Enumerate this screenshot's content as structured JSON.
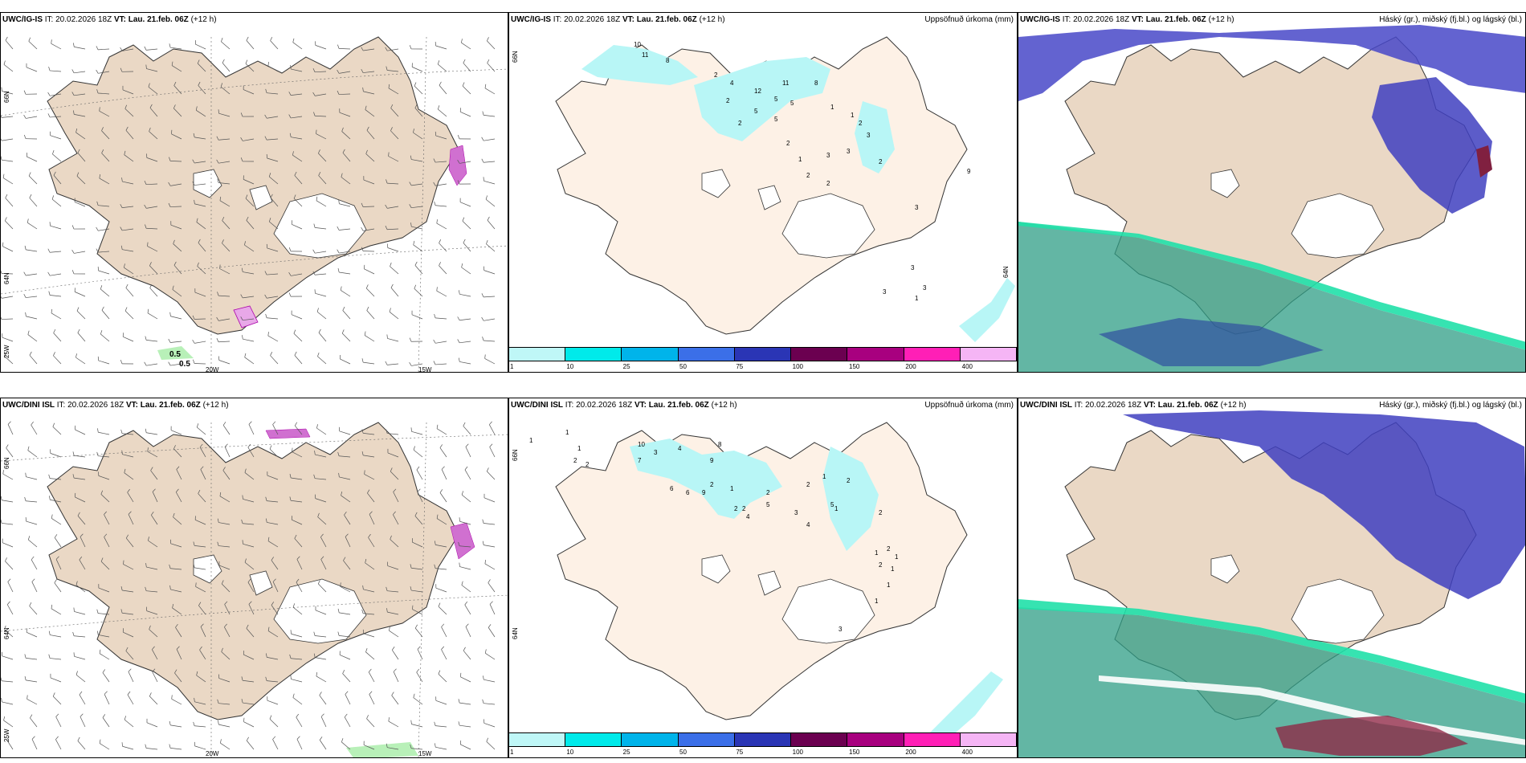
{
  "panels": {
    "r0c0": {
      "model": "UWC/IG-IS",
      "it_label": "IT:",
      "it": "20.02.2026 18Z",
      "vt_label": "VT:",
      "vt": "Lau. 21.feb. 06Z",
      "lead": "(+12 h)",
      "right": ""
    },
    "r0c1": {
      "model": "UWC/IG-IS",
      "it_label": "IT:",
      "it": "20.02.2026 18Z",
      "vt_label": "VT:",
      "vt": "Lau. 21.feb. 06Z",
      "lead": "(+12 h)",
      "right": "Uppsöfnuð úrkoma (mm)"
    },
    "r0c2": {
      "model": "UWC/IG-IS",
      "it_label": "IT:",
      "it": "20.02.2026 18Z",
      "vt_label": "VT:",
      "vt": "Lau. 21.feb. 06Z",
      "lead": "(+12 h)",
      "right": "Háský (gr.), miðský (fj.bl.) og lágský (bl.)"
    },
    "r1c0": {
      "model": "UWC/DINI ISL",
      "it_label": "IT:",
      "it": "20.02.2026 18Z",
      "vt_label": "VT:",
      "vt": "Lau. 21.feb. 06Z",
      "lead": "(+12 h)",
      "right": ""
    },
    "r1c1": {
      "model": "UWC/DINI ISL",
      "it_label": "IT:",
      "it": "20.02.2026 18Z",
      "vt_label": "VT:",
      "vt": "Lau. 21.feb. 06Z",
      "lead": "(+12 h)",
      "right": "Uppsöfnuð úrkoma (mm)"
    },
    "r1c2": {
      "model": "UWC/DINI ISL",
      "it_label": "IT:",
      "it": "20.02.2026 18Z",
      "vt_label": "VT:",
      "vt": "Lau. 21.feb. 06Z",
      "lead": "(+12 h)",
      "right": "Háský (gr.), miðský (fj.bl.) og lágský (bl.)"
    }
  },
  "grid_labels": {
    "lat66": "66N",
    "lat64": "64N",
    "lon25": "25W",
    "lon20": "20W",
    "lon15": "15W"
  },
  "wind_labels": [
    "0.5",
    "0.5"
  ],
  "colorbar": {
    "labels": [
      "1",
      "10",
      "25",
      "50",
      "75",
      "100",
      "150",
      "200",
      "400"
    ],
    "colors": [
      "#bff7f7",
      "#00eaea",
      "#00b4ea",
      "#3b6fe8",
      "#2a35b5",
      "#6b0050",
      "#a8007f",
      "#ff1fb6",
      "#f5b5f5"
    ]
  },
  "precip_values_top": [
    "10",
    "11",
    "8",
    "2",
    "4",
    "2",
    "12",
    "11",
    "5",
    "5",
    "5",
    "5",
    "8",
    "2",
    "1",
    "1",
    "2",
    "3",
    "3",
    "1",
    "2",
    "3",
    "9",
    "2",
    "2",
    "2",
    "3",
    "3",
    "3",
    "3",
    "1"
  ],
  "precip_values_bottom": [
    "1",
    "1",
    "1",
    "2",
    "10",
    "7",
    "3",
    "4",
    "2",
    "8",
    "9",
    "6",
    "6",
    "9",
    "2",
    "1",
    "2",
    "2",
    "4",
    "2",
    "5",
    "2",
    "1",
    "3",
    "4",
    "5",
    "2",
    "1",
    "2",
    "1",
    "2",
    "2",
    "1",
    "1",
    "1",
    "1",
    "3"
  ],
  "colors": {
    "land": "#ead8c5",
    "land_precip": "#fdf1e6",
    "ice": "#ffffff",
    "precip_light": "#b8f6f6",
    "cloud_high": "#2f9e86",
    "cloud_mid": "#20b890",
    "cloud_low": "#4040c0"
  }
}
